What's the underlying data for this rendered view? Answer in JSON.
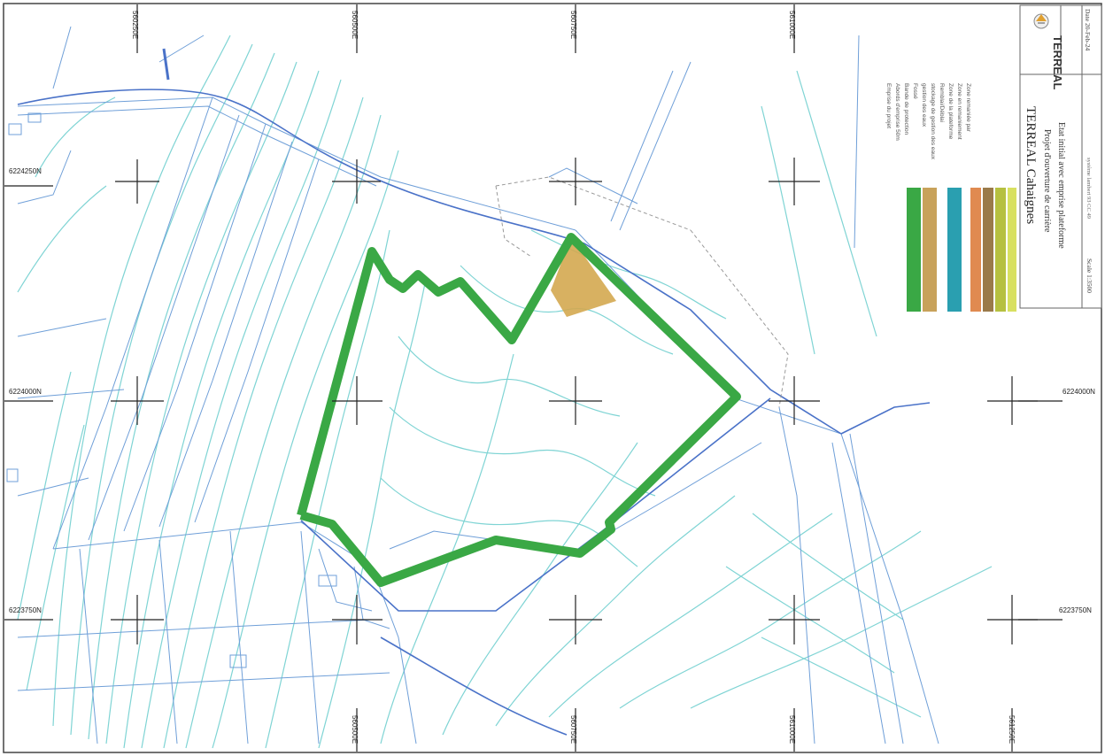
{
  "title_block": {
    "project_name": "TERREAL Cahaignes",
    "subtitle_1": "Projet d'ouverture de carrière",
    "subtitle_2": "Etat initial avec emprise plateforme",
    "logo_text": "TERREAL",
    "date": "Date 20-Feb-24",
    "scale": "Scale 1:3500",
    "projection": "système lambert 93 CC 49"
  },
  "legend": {
    "items": [
      {
        "label": "Emprise du projet",
        "color": "#3aa845"
      },
      {
        "label": "Abords d'emprise 50m",
        "color": "#3aa845"
      },
      {
        "label": "Bande de protection",
        "color": "#c8a25a"
      },
      {
        "label": "Fossé",
        "color": "#2a9fb0"
      },
      {
        "label": "gestion des eaux",
        "color": "#2a9fb0"
      },
      {
        "label": "stockage de gestion des eaux",
        "color": "#3aa8a0"
      },
      {
        "label": "Remblai/Déblai",
        "color": "#e08a50"
      },
      {
        "label": "Zone de la plateforme",
        "color": "#9a7a4a"
      },
      {
        "label": "Zone en remaniement",
        "color": "#b6c040"
      },
      {
        "label": "Zone remaniée par",
        "color": "#d8e060"
      }
    ]
  },
  "grid_labels": {
    "left_1": "6224250N",
    "left_2": "6224000N",
    "left_3": "6223750N",
    "right_2": "6224000N",
    "right_3": "6223750N",
    "top_1": "560250E",
    "top_2": "560500E",
    "top_3": "560750E",
    "top_4": "561000E",
    "bottom_2": "560500E",
    "bottom_3": "560750E",
    "bottom_4": "561000E",
    "bottom_5": "561250E"
  },
  "colors": {
    "contour": "#7fd4d4",
    "parcel": "#6f9fd8",
    "boundary": "#3aa845",
    "platform": "#d4a850",
    "road": "#4a72c8"
  }
}
